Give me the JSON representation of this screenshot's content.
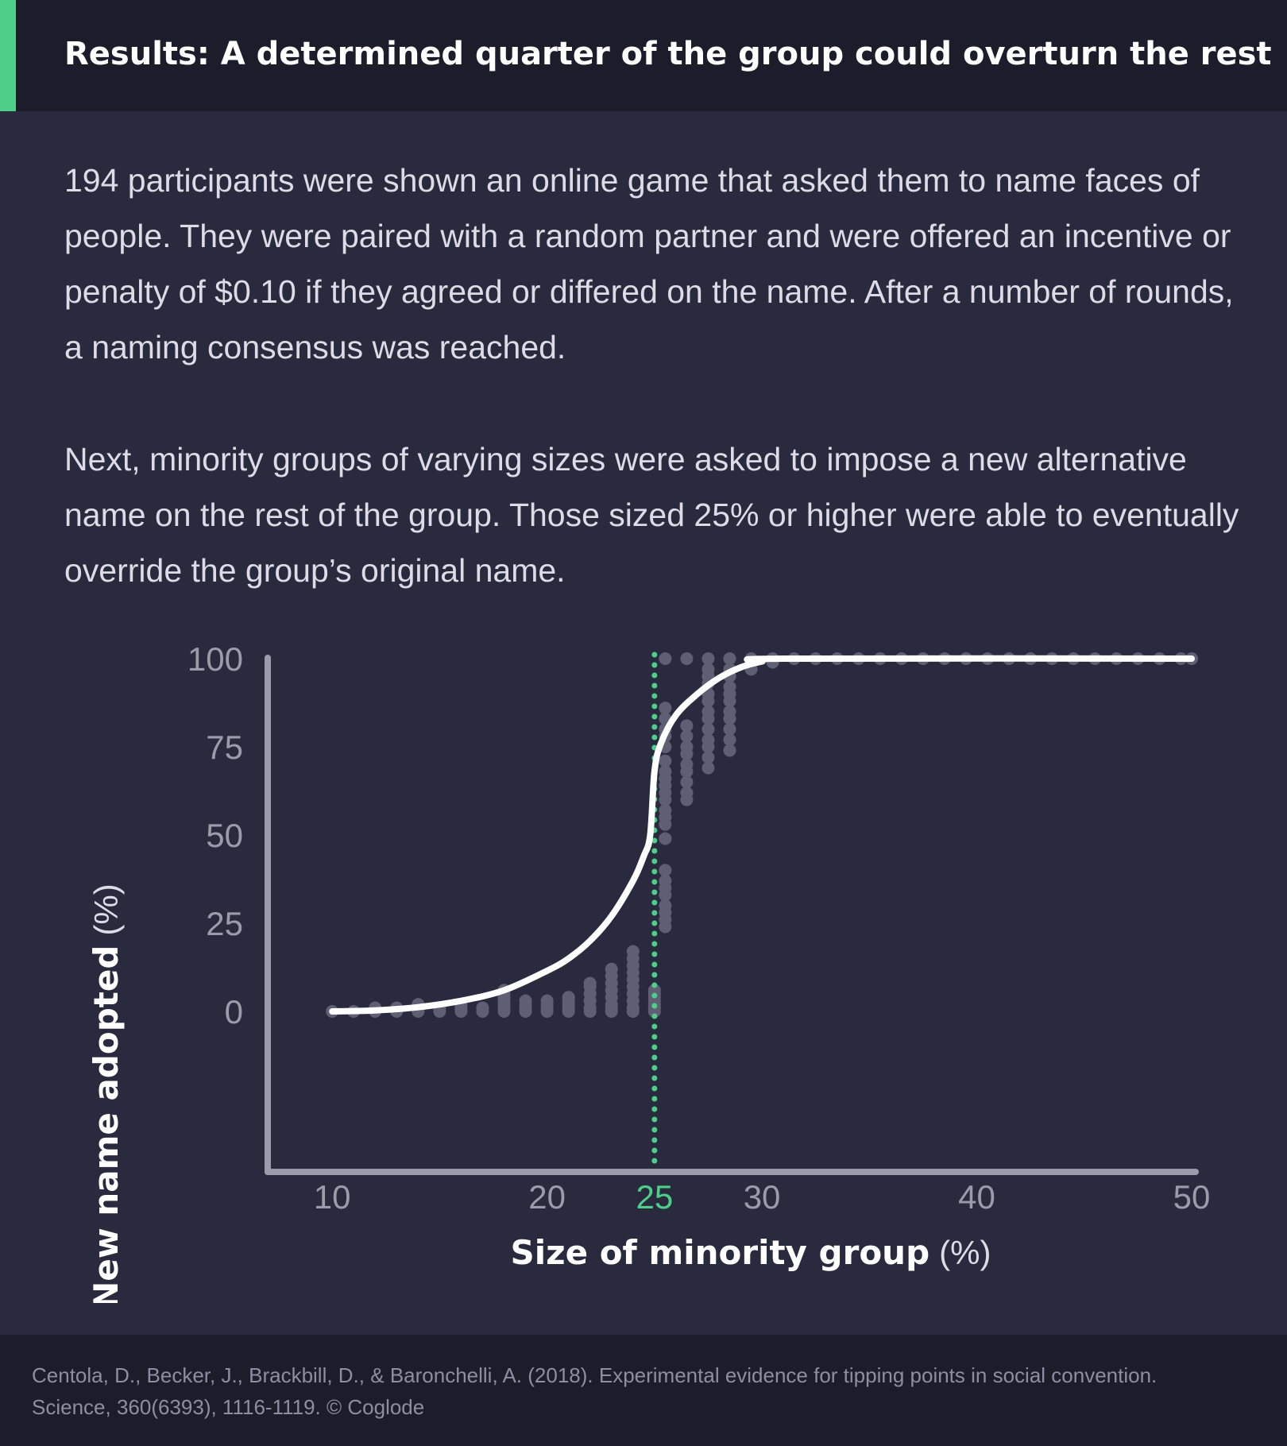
{
  "header": {
    "title": "Results: A determined quarter of the group could overturn the rest",
    "accent_color": "#4fce8a"
  },
  "intro": {
    "paragraph1": "194 participants were shown an online game that asked them to name faces of people. They were paired with a random partner and were offered an incentive or penalty of $0.10 if they agreed or differed on the name. After a number of rounds, a naming consensus was reached.",
    "paragraph2": "Next, minority groups of varying sizes were asked to impose a new alternative name on the rest of the group. Those sized 25% or higher were able to eventually override the group’s original name."
  },
  "chart_data": {
    "type": "scatter",
    "xlabel": "Size of minority group",
    "xlabel_unit": "(%)",
    "ylabel": "New name adopted",
    "ylabel_unit": "(%)",
    "xlim": [
      7,
      50
    ],
    "ylim": [
      0,
      100
    ],
    "x_ticks": [
      10,
      20,
      25,
      30,
      40,
      50
    ],
    "y_ticks": [
      0,
      25,
      50,
      75,
      100
    ],
    "highlight_x": 25,
    "highlight_color": "#4fce8a",
    "curve_color": "#ffffff",
    "point_color": "#5f5e73",
    "grid": false,
    "fit_curve": {
      "name": "",
      "points": [
        [
          10,
          0
        ],
        [
          12,
          0.3
        ],
        [
          14,
          1.2
        ],
        [
          16,
          3
        ],
        [
          18,
          6
        ],
        [
          20,
          11.5
        ],
        [
          21,
          15
        ],
        [
          22,
          20
        ],
        [
          23,
          27
        ],
        [
          24,
          37
        ],
        [
          24.5,
          44
        ],
        [
          24.8,
          50
        ],
        [
          25,
          68
        ],
        [
          25.3,
          76
        ],
        [
          26,
          84
        ],
        [
          27,
          90
        ],
        [
          28,
          94.5
        ],
        [
          29,
          97.5
        ],
        [
          30,
          99.2
        ],
        [
          31,
          100
        ],
        [
          50,
          100
        ]
      ]
    },
    "series": [
      {
        "name": "",
        "points": [
          [
            10,
            0
          ],
          [
            11,
            0
          ],
          [
            12,
            0
          ],
          [
            12,
            1
          ],
          [
            13,
            0
          ],
          [
            13,
            1
          ],
          [
            14,
            0
          ],
          [
            14,
            1
          ],
          [
            14,
            2
          ],
          [
            15,
            0
          ],
          [
            15,
            1
          ],
          [
            16,
            0
          ],
          [
            16,
            1
          ],
          [
            16,
            2
          ],
          [
            17,
            0
          ],
          [
            17,
            1
          ],
          [
            18,
            0
          ],
          [
            18,
            1
          ],
          [
            18,
            2
          ],
          [
            18,
            3
          ],
          [
            18,
            4
          ],
          [
            18,
            5
          ],
          [
            18,
            6
          ],
          [
            19,
            0
          ],
          [
            19,
            1
          ],
          [
            19,
            2
          ],
          [
            19,
            3
          ],
          [
            20,
            0
          ],
          [
            20,
            1
          ],
          [
            20,
            2
          ],
          [
            20,
            3
          ],
          [
            21,
            0
          ],
          [
            21,
            1
          ],
          [
            21,
            2
          ],
          [
            21,
            3
          ],
          [
            21,
            4
          ],
          [
            22,
            0
          ],
          [
            22,
            1
          ],
          [
            22,
            3
          ],
          [
            22,
            5
          ],
          [
            22,
            7
          ],
          [
            22,
            8
          ],
          [
            23,
            0
          ],
          [
            23,
            1
          ],
          [
            23,
            2
          ],
          [
            23,
            4
          ],
          [
            23,
            6
          ],
          [
            23,
            8
          ],
          [
            23,
            10
          ],
          [
            23,
            12
          ],
          [
            24,
            0
          ],
          [
            24,
            1
          ],
          [
            24,
            3
          ],
          [
            24,
            5
          ],
          [
            24,
            7
          ],
          [
            24,
            9
          ],
          [
            24,
            11
          ],
          [
            24,
            13
          ],
          [
            24,
            15
          ],
          [
            24,
            17
          ],
          [
            25,
            0
          ],
          [
            25,
            1
          ],
          [
            25,
            2
          ],
          [
            25,
            3
          ],
          [
            25,
            4
          ],
          [
            25,
            5
          ],
          [
            25,
            6
          ],
          [
            25.5,
            24
          ],
          [
            25.5,
            26
          ],
          [
            25.5,
            28
          ],
          [
            25.5,
            30
          ],
          [
            25.5,
            33
          ],
          [
            25.5,
            35
          ],
          [
            25.5,
            37
          ],
          [
            25.5,
            40
          ],
          [
            25.5,
            49
          ],
          [
            25.5,
            53
          ],
          [
            25.5,
            55
          ],
          [
            25.5,
            57
          ],
          [
            25.5,
            60
          ],
          [
            25.5,
            62
          ],
          [
            25.5,
            64
          ],
          [
            25.5,
            66
          ],
          [
            25.5,
            68
          ],
          [
            25.5,
            71
          ],
          [
            25.5,
            75
          ],
          [
            25.5,
            78
          ],
          [
            25.5,
            80
          ],
          [
            25.5,
            83
          ],
          [
            25.5,
            86
          ],
          [
            25.5,
            100
          ],
          [
            26.5,
            60
          ],
          [
            26.5,
            62
          ],
          [
            26.5,
            65
          ],
          [
            26.5,
            68
          ],
          [
            26.5,
            70
          ],
          [
            26.5,
            73
          ],
          [
            26.5,
            75
          ],
          [
            26.5,
            78
          ],
          [
            26.5,
            81
          ],
          [
            26.5,
            100
          ],
          [
            27.5,
            69
          ],
          [
            27.5,
            72
          ],
          [
            27.5,
            75
          ],
          [
            27.5,
            77
          ],
          [
            27.5,
            80
          ],
          [
            27.5,
            83
          ],
          [
            27.5,
            85
          ],
          [
            27.5,
            88
          ],
          [
            27.5,
            90
          ],
          [
            27.5,
            93
          ],
          [
            27.5,
            95
          ],
          [
            27.5,
            97
          ],
          [
            27.5,
            100
          ],
          [
            28.5,
            74
          ],
          [
            28.5,
            77
          ],
          [
            28.5,
            80
          ],
          [
            28.5,
            83
          ],
          [
            28.5,
            85
          ],
          [
            28.5,
            88
          ],
          [
            28.5,
            90
          ],
          [
            28.5,
            92
          ],
          [
            28.5,
            95
          ],
          [
            28.5,
            97
          ],
          [
            28.5,
            100
          ],
          [
            29.5,
            97
          ],
          [
            29.5,
            99
          ],
          [
            29.5,
            100
          ],
          [
            30.5,
            99
          ],
          [
            30.5,
            100
          ],
          [
            31.5,
            100
          ],
          [
            32.5,
            100
          ],
          [
            33.5,
            100
          ],
          [
            34.5,
            100
          ],
          [
            35.5,
            100
          ],
          [
            36.5,
            100
          ],
          [
            37.5,
            100
          ],
          [
            38.5,
            100
          ],
          [
            39.5,
            100
          ],
          [
            40.5,
            100
          ],
          [
            41.5,
            100
          ],
          [
            42.5,
            100
          ],
          [
            43.5,
            100
          ],
          [
            44.5,
            100
          ],
          [
            45.5,
            100
          ],
          [
            46.5,
            100
          ],
          [
            47.5,
            100
          ],
          [
            48.5,
            100
          ],
          [
            49.5,
            100
          ],
          [
            50,
            100
          ]
        ]
      }
    ]
  },
  "footer": {
    "citation_line1": "Centola, D., Becker, J., Brackbill, D., & Baronchelli, A. (2018). Experimental evidence for tipping points in social convention.",
    "citation_line2": "Science, 360(6393), 1116-1119. © Coglode"
  }
}
